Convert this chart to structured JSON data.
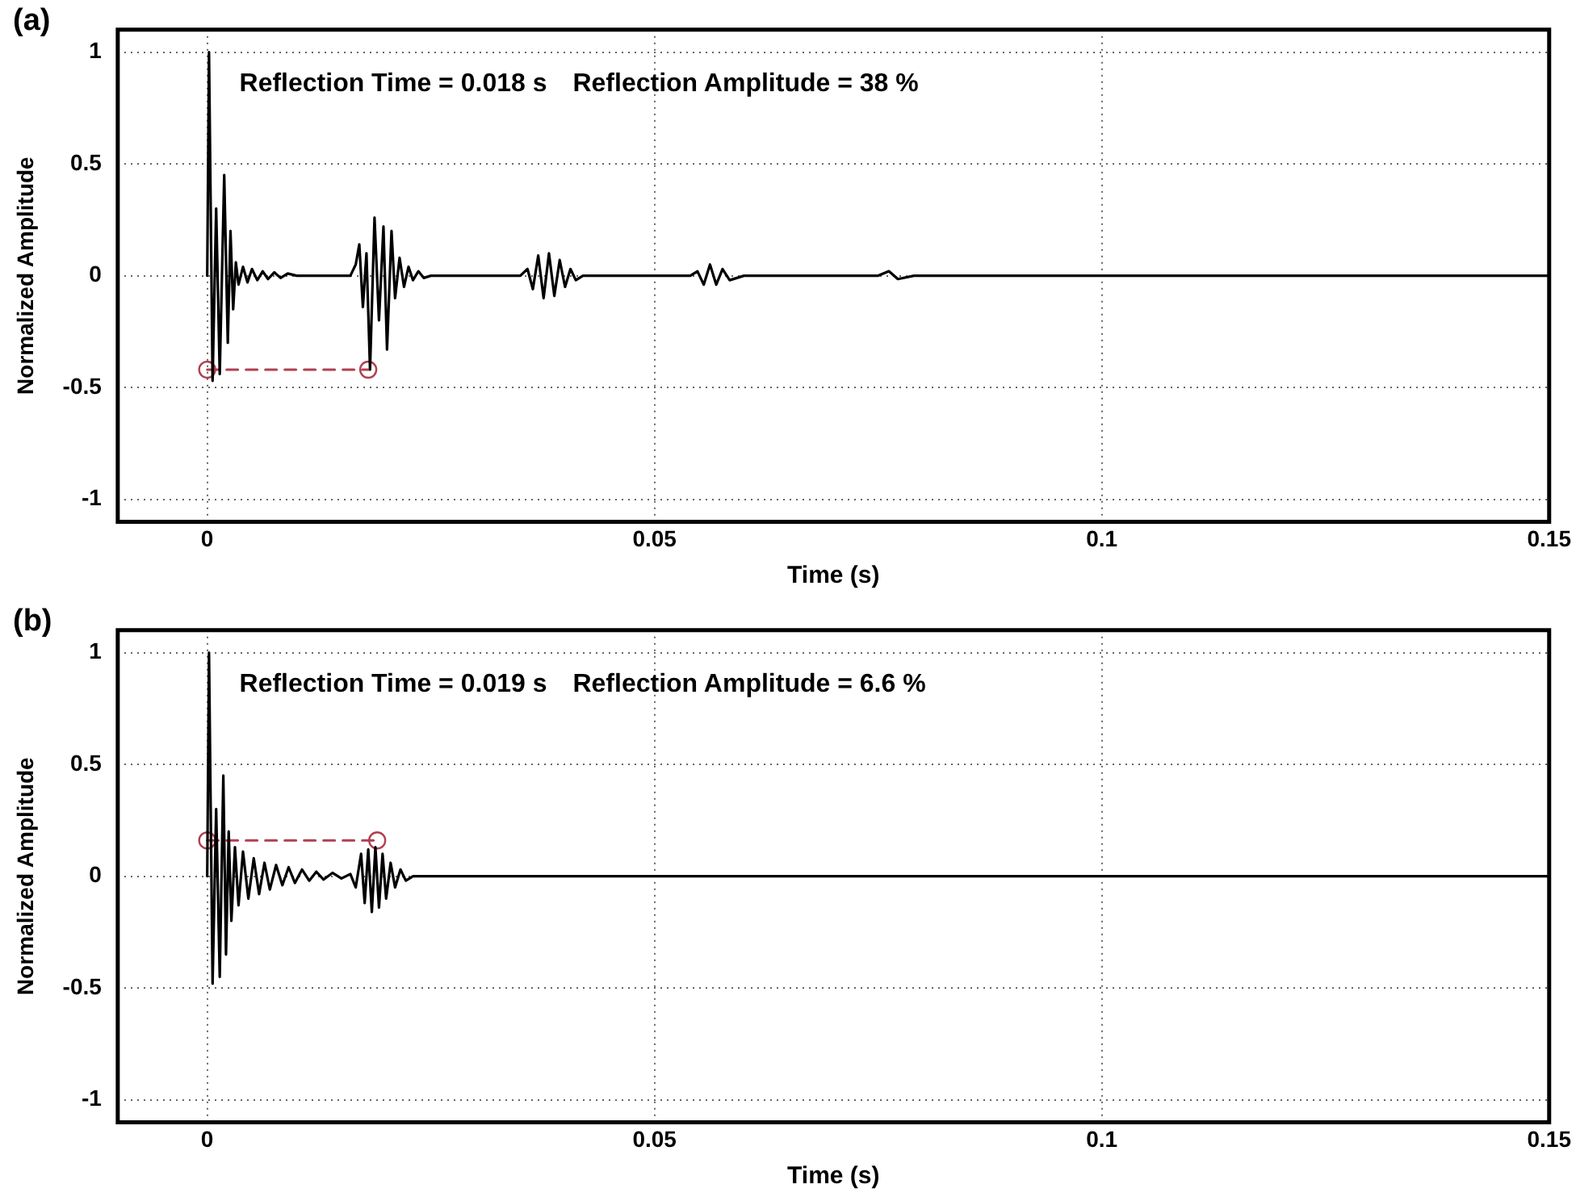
{
  "chart_data": [
    {
      "type": "line",
      "title": "(a)",
      "xlabel": "Time (s)",
      "ylabel": "Normalized Amplitude",
      "annotations": [
        "Reflection Time = 0.018 s",
        "Reflection Amplitude = 38 %"
      ],
      "xlim": [
        -0.01,
        0.15
      ],
      "xticks": [
        0,
        0.05,
        0.1,
        0.15
      ],
      "ylim": [
        -1.1,
        1.1
      ],
      "yticks": [
        -1,
        -0.5,
        0,
        0.5,
        1
      ],
      "grid": true,
      "legend": false,
      "series": [
        {
          "color": "#000000",
          "marker": "none",
          "line_style": "solid",
          "x": [
            0,
            0.0002,
            0.0006,
            0.001,
            0.0014,
            0.0019,
            0.0023,
            0.0026,
            0.0029,
            0.0032,
            0.0035,
            0.004,
            0.0045,
            0.005,
            0.0056,
            0.0062,
            0.0068,
            0.0075,
            0.0082,
            0.009,
            0.01,
            0.016,
            0.0166,
            0.017,
            0.0174,
            0.0178,
            0.0182,
            0.0187,
            0.0192,
            0.0197,
            0.0201,
            0.0206,
            0.021,
            0.0215,
            0.022,
            0.0225,
            0.023,
            0.0236,
            0.0242,
            0.025,
            0.035,
            0.0358,
            0.0364,
            0.037,
            0.0376,
            0.0382,
            0.0388,
            0.0394,
            0.04,
            0.0406,
            0.0412,
            0.042,
            0.054,
            0.0548,
            0.0555,
            0.0562,
            0.0569,
            0.0576,
            0.0584,
            0.06,
            0.075,
            0.0762,
            0.0772,
            0.079,
            0.15
          ],
          "values": [
            0,
            1,
            -0.47,
            0.3,
            -0.44,
            0.45,
            -0.3,
            0.2,
            -0.15,
            0.06,
            -0.04,
            0.04,
            -0.03,
            0.03,
            -0.02,
            0.02,
            -0.015,
            0.015,
            -0.01,
            0.01,
            0,
            0,
            0.05,
            0.14,
            -0.14,
            0.1,
            -0.42,
            0.26,
            -0.2,
            0.22,
            -0.33,
            0.2,
            -0.1,
            0.08,
            -0.05,
            0.04,
            -0.02,
            0.02,
            -0.01,
            0,
            0,
            0.03,
            -0.06,
            0.09,
            -0.1,
            0.1,
            -0.09,
            0.07,
            -0.05,
            0.03,
            -0.02,
            0,
            0,
            0.02,
            -0.04,
            0.05,
            -0.04,
            0.03,
            -0.02,
            0,
            0,
            0.02,
            -0.015,
            0,
            0
          ]
        },
        {
          "color": "#b04050",
          "marker": "circle",
          "line_style": "dashed",
          "x": [
            0,
            0.018
          ],
          "values": [
            -0.42,
            -0.42
          ]
        }
      ]
    },
    {
      "type": "line",
      "title": "(b)",
      "xlabel": "Time (s)",
      "ylabel": "Normalized Amplitude",
      "annotations": [
        "Reflection Time = 0.019 s",
        "Reflection Amplitude = 6.6 %"
      ],
      "xlim": [
        -0.01,
        0.15
      ],
      "xticks": [
        0,
        0.05,
        0.1,
        0.15
      ],
      "ylim": [
        -1.1,
        1.1
      ],
      "yticks": [
        -1,
        -0.5,
        0,
        0.5,
        1
      ],
      "grid": true,
      "legend": false,
      "series": [
        {
          "color": "#000000",
          "marker": "none",
          "line_style": "solid",
          "x": [
            0,
            0.0002,
            0.0006,
            0.001,
            0.0014,
            0.0018,
            0.0021,
            0.0024,
            0.0027,
            0.0031,
            0.0035,
            0.004,
            0.0046,
            0.0052,
            0.0058,
            0.0064,
            0.007,
            0.0077,
            0.0084,
            0.0091,
            0.0098,
            0.0106,
            0.0114,
            0.0122,
            0.013,
            0.014,
            0.015,
            0.016,
            0.0166,
            0.0172,
            0.0176,
            0.018,
            0.0184,
            0.0188,
            0.0192,
            0.0196,
            0.02,
            0.0205,
            0.021,
            0.0216,
            0.0222,
            0.023,
            0.15
          ],
          "values": [
            0,
            1,
            -0.48,
            0.3,
            -0.45,
            0.45,
            -0.35,
            0.2,
            -0.2,
            0.13,
            -0.13,
            0.11,
            -0.1,
            0.08,
            -0.08,
            0.06,
            -0.06,
            0.05,
            -0.04,
            0.04,
            -0.03,
            0.03,
            -0.02,
            0.02,
            -0.015,
            0.015,
            -0.01,
            0.01,
            -0.05,
            0.1,
            -0.12,
            0.12,
            -0.16,
            0.13,
            -0.14,
            0.1,
            -0.1,
            0.06,
            -0.05,
            0.03,
            -0.02,
            0,
            0
          ]
        },
        {
          "color": "#b04050",
          "marker": "circle",
          "line_style": "dashed",
          "x": [
            0,
            0.019
          ],
          "values": [
            0.16,
            0.16
          ]
        }
      ]
    }
  ]
}
